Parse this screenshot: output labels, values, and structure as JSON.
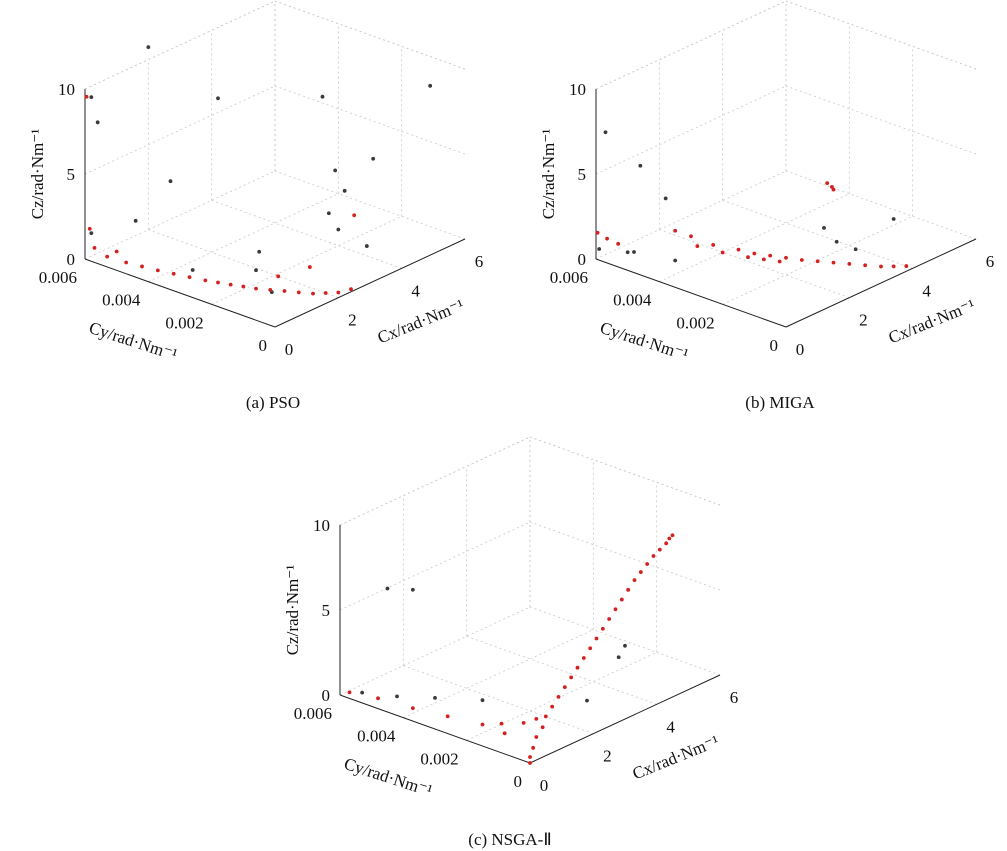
{
  "chart_data": [
    {
      "type": "scatter",
      "caption": "(a) PSO",
      "xlabel": "Cx/rad·Nm⁻¹",
      "ylabel": "Cy/rad·Nm⁻¹",
      "zlabel": "Cz/rad·Nm⁻¹",
      "xlim": [
        0,
        6
      ],
      "ylim": [
        0,
        0.006
      ],
      "zlim": [
        0,
        10
      ],
      "xticks": [
        0,
        2,
        4,
        6
      ],
      "yticks": [
        0,
        0.002,
        0.004,
        0.006
      ],
      "zticks": [
        0,
        5,
        10
      ],
      "xtick_labels": [
        "0",
        "2",
        "4",
        "6"
      ],
      "ytick_labels": [
        "0",
        "0.002",
        "0.004",
        "0.006"
      ],
      "ztick_labels": [
        "0",
        "5",
        "10"
      ],
      "grid": true,
      "series": [
        {
          "color": "#3a3a3a",
          "points": [
            [
              0.1,
              0.0059,
              9.5
            ],
            [
              1.5,
              0.0055,
              11.5
            ],
            [
              1.8,
              0.0036,
              9.5
            ],
            [
              3.3,
              0.0018,
              9.5
            ],
            [
              5.2,
              0.0003,
              9.5
            ],
            [
              2.6,
              0.0007,
              6.5
            ],
            [
              2.6,
              0.0004,
              5.5
            ],
            [
              3.9,
              0.0008,
              6
            ],
            [
              0.2,
              0.0058,
              8
            ],
            [
              0.9,
              0.0042,
              5
            ],
            [
              2.4,
              0.0004,
              3.4
            ],
            [
              2.5,
              0.0008,
              4
            ],
            [
              0.4,
              0.0048,
              2.7
            ],
            [
              1.5,
              0.002,
              1.8
            ],
            [
              3.2,
              0.0003,
              1.8
            ],
            [
              1.4,
              0.002,
              0.8
            ],
            [
              0.1,
              0.0059,
              1.5
            ],
            [
              0.6,
              0.0032,
              0.7
            ],
            [
              1.1,
              0.0012,
              0.3
            ]
          ]
        },
        {
          "color": "#d62020",
          "points": [
            [
              0.05,
              0.006,
              9.5
            ],
            [
              0.05,
              0.0059,
              1.8
            ],
            [
              0.1,
              0.0058,
              0.7
            ],
            [
              0.2,
              0.0055,
              0.3
            ],
            [
              0.3,
              0.005,
              0.2
            ],
            [
              0.4,
              0.0046,
              0.15
            ],
            [
              0.5,
              0.0042,
              0.1
            ],
            [
              0.6,
              0.0038,
              0.08
            ],
            [
              0.7,
              0.0034,
              0.06
            ],
            [
              0.8,
              0.003,
              0.05
            ],
            [
              0.9,
              0.0027,
              0.04
            ],
            [
              1.0,
              0.0024,
              0.03
            ],
            [
              1.1,
              0.0021,
              0.03
            ],
            [
              1.2,
              0.0018,
              0.02
            ],
            [
              1.35,
              0.0015,
              0.02
            ],
            [
              1.5,
              0.0012,
              0.02
            ],
            [
              1.65,
              0.0009,
              0.01
            ],
            [
              1.8,
              0.0006,
              0.01
            ],
            [
              2.0,
              0.0004,
              0.01
            ],
            [
              2.2,
              0.0002,
              0.0
            ],
            [
              2.5,
              0.0001,
              0.0
            ],
            [
              2.0,
              0.0009,
              1.2
            ],
            [
              1.6,
              0.0015,
              0.6
            ],
            [
              0.2,
              0.0052,
              0.8
            ],
            [
              3.1,
              0.0006,
              3.5
            ]
          ]
        }
      ]
    },
    {
      "type": "scatter",
      "caption": "(b) MIGA",
      "xlabel": "Cx/rad·Nm⁻¹",
      "ylabel": "Cy/rad·Nm⁻¹",
      "zlabel": "Cz/rad·Nm⁻¹",
      "xlim": [
        0,
        6
      ],
      "ylim": [
        0,
        0.006
      ],
      "zlim": [
        0,
        10
      ],
      "xticks": [
        0,
        2,
        4,
        6
      ],
      "yticks": [
        0,
        0.002,
        0.004,
        0.006
      ],
      "zticks": [
        0,
        5,
        10
      ],
      "xtick_labels": [
        "0",
        "2",
        "4",
        "6"
      ],
      "ytick_labels": [
        "0",
        "0.002",
        "0.004",
        "0.006"
      ],
      "ztick_labels": [
        "0",
        "5",
        "10"
      ],
      "grid": true,
      "series": [
        {
          "color": "#3a3a3a",
          "points": [
            [
              0.1,
              0.0058,
              7.5
            ],
            [
              0.6,
              0.0052,
              5.5
            ],
            [
              1.0,
              0.0048,
              3.5
            ],
            [
              2.7,
              0.0015,
              2.5
            ],
            [
              4.0,
              0.0006,
              2.5
            ],
            [
              2.8,
              0.0012,
              1.8
            ],
            [
              3.1,
              0.0009,
              1.3
            ],
            [
              0.1,
              0.006,
              0.5
            ],
            [
              0.4,
              0.0052,
              0.6
            ],
            [
              0.9,
              0.0044,
              0.2
            ],
            [
              0.5,
              0.0055,
              0.3
            ]
          ]
        },
        {
          "color": "#d62020",
          "points": [
            [
              0.05,
              0.006,
              1.5
            ],
            [
              0.15,
              0.0058,
              1.2
            ],
            [
              0.3,
              0.0056,
              0.9
            ],
            [
              2.7,
              0.0014,
              5.2
            ],
            [
              2.75,
              0.0013,
              5.0
            ],
            [
              2.8,
              0.0013,
              4.8
            ],
            [
              1.0,
              0.0045,
              1.8
            ],
            [
              1.2,
              0.0042,
              1.5
            ],
            [
              1.5,
              0.0038,
              1.0
            ],
            [
              1.8,
              0.0033,
              0.8
            ],
            [
              2.0,
              0.003,
              0.6
            ],
            [
              2.2,
              0.0027,
              0.5
            ],
            [
              2.4,
              0.0024,
              0.4
            ],
            [
              2.6,
              0.0021,
              0.3
            ],
            [
              2.8,
              0.0018,
              0.25
            ],
            [
              3.0,
              0.0015,
              0.2
            ],
            [
              3.2,
              0.0012,
              0.15
            ],
            [
              3.4,
              0.0009,
              0.1
            ],
            [
              3.6,
              0.0006,
              0.05
            ],
            [
              3.8,
              0.0004,
              0.02
            ],
            [
              4.0,
              0.0002,
              0.0
            ],
            [
              1.3,
              0.0041,
              0.9
            ],
            [
              1.6,
              0.0036,
              0.6
            ],
            [
              1.9,
              0.0031,
              0.4
            ],
            [
              2.1,
              0.0028,
              0.3
            ],
            [
              2.3,
              0.0025,
              0.2
            ]
          ]
        }
      ]
    },
    {
      "type": "scatter",
      "caption": "(c) NSGA-Ⅱ",
      "xlabel": "Cx/rad·Nm⁻¹",
      "ylabel": "Cy/rad·Nm⁻¹",
      "zlabel": "Cz/rad·Nm⁻¹",
      "xlim": [
        0,
        6
      ],
      "ylim": [
        0,
        0.006
      ],
      "zlim": [
        0,
        10
      ],
      "xticks": [
        0,
        2,
        4,
        6
      ],
      "yticks": [
        0,
        0.002,
        0.004,
        0.006
      ],
      "zticks": [
        0,
        5,
        10
      ],
      "xtick_labels": [
        "0",
        "2",
        "4",
        "6"
      ],
      "ytick_labels": [
        "0",
        "0.002",
        "0.004",
        "0.006"
      ],
      "ztick_labels": [
        "0",
        "5",
        "10"
      ],
      "grid": true,
      "series": [
        {
          "color": "#3a3a3a",
          "points": [
            [
              0.5,
              0.005,
              6.5
            ],
            [
              0.8,
              0.0045,
              6.5
            ],
            [
              0.2,
              0.0055,
              0.3
            ],
            [
              0.6,
              0.0048,
              0.2
            ],
            [
              1.0,
              0.004,
              0.3
            ],
            [
              1.5,
              0.003,
              0.4
            ],
            [
              2.4,
              0.0006,
              1.2
            ],
            [
              3.0,
              0.0002,
              3.5
            ],
            [
              3.2,
              0.0002,
              4.0
            ]
          ]
        },
        {
          "color": "#d62020",
          "points": [
            [
              0.0,
              0.0,
              0.0
            ],
            [
              0.1,
              0.0001,
              0.2
            ],
            [
              0.3,
              0.0002,
              0.5
            ],
            [
              0.5,
              0.0003,
              0.9
            ],
            [
              0.7,
              0.0003,
              1.3
            ],
            [
              0.9,
              0.0004,
              1.7
            ],
            [
              1.1,
              0.0004,
              2.1
            ],
            [
              1.3,
              0.0004,
              2.5
            ],
            [
              1.5,
              0.0004,
              2.9
            ],
            [
              1.7,
              0.0004,
              3.3
            ],
            [
              1.9,
              0.0004,
              3.7
            ],
            [
              2.1,
              0.0004,
              4.1
            ],
            [
              2.3,
              0.0004,
              4.5
            ],
            [
              2.5,
              0.0004,
              4.9
            ],
            [
              2.7,
              0.0004,
              5.3
            ],
            [
              2.9,
              0.0004,
              5.7
            ],
            [
              3.1,
              0.0004,
              6.1
            ],
            [
              3.3,
              0.0004,
              6.5
            ],
            [
              3.5,
              0.0004,
              6.9
            ],
            [
              3.7,
              0.0004,
              7.3
            ],
            [
              3.9,
              0.0004,
              7.6
            ],
            [
              4.1,
              0.0004,
              7.9
            ],
            [
              4.3,
              0.0004,
              8.2
            ],
            [
              4.5,
              0.0004,
              8.4
            ],
            [
              4.7,
              0.0004,
              8.6
            ],
            [
              4.8,
              0.0004,
              8.8
            ],
            [
              4.9,
              0.0004,
              8.9
            ],
            [
              0.4,
              0.0012,
              0.6
            ],
            [
              0.5,
              0.002,
              0.5
            ],
            [
              0.4,
              0.003,
              0.4
            ],
            [
              0.3,
              0.004,
              0.3
            ],
            [
              0.2,
              0.005,
              0.3
            ],
            [
              0.1,
              0.0058,
              0.2
            ],
            [
              0.6,
              0.0015,
              0.8
            ],
            [
              0.8,
              0.001,
              1.0
            ],
            [
              1.0,
              0.0008,
              1.2
            ]
          ]
        }
      ]
    }
  ]
}
